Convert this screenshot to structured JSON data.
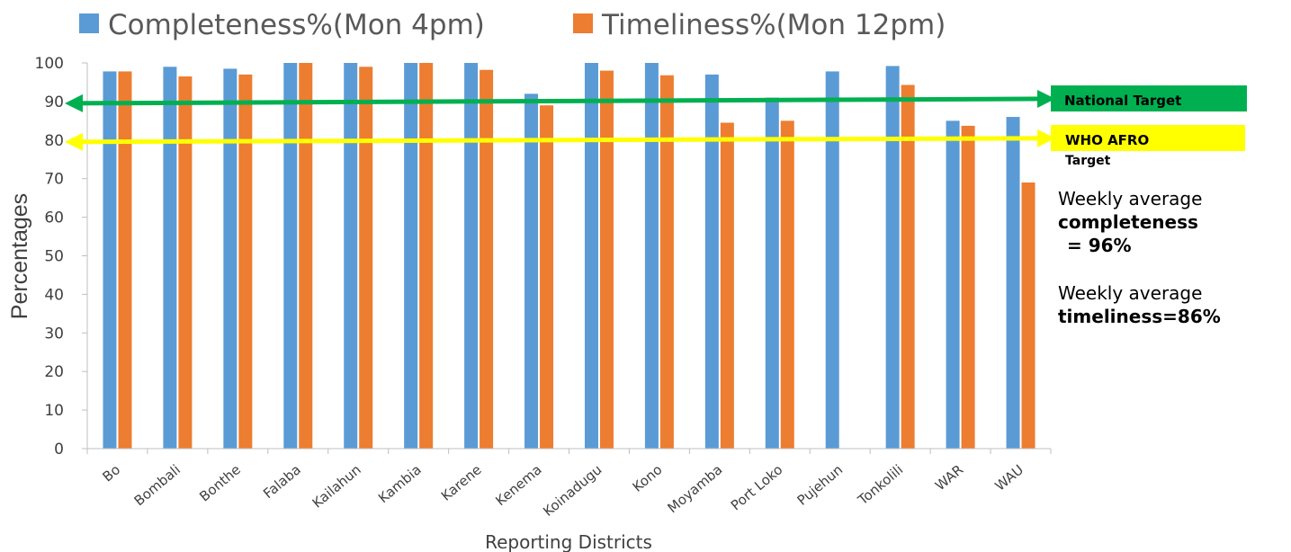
{
  "chart_data": {
    "type": "bar",
    "xlabel": "Reporting Districts",
    "ylabel": "Percentages",
    "ylim": [
      0,
      100
    ],
    "yticks": [
      0,
      10,
      20,
      30,
      40,
      50,
      60,
      70,
      80,
      90,
      100
    ],
    "grid": false,
    "legend_position": "top",
    "categories": [
      "Bo",
      "Bombali",
      "Bonthe",
      "Falaba",
      "Kailahun",
      "Kambia",
      "Karene",
      "Kenema",
      "Koinadugu",
      "Kono",
      "Moyamba",
      "Port Loko",
      "Pujehun",
      "Tonkolili",
      "WAR",
      "WAU"
    ],
    "series": [
      {
        "name": "Completeness%(Mon 4pm)",
        "color": "#5b9bd5",
        "values": [
          97.8,
          99,
          98.5,
          100,
          100,
          100,
          100,
          92,
          100,
          100,
          97,
          91,
          97.8,
          99.2,
          85,
          86
        ]
      },
      {
        "name": "Timeliness%(Mon 12pm)",
        "color": "#ed7d31",
        "values": [
          97.8,
          96.5,
          97,
          100,
          99,
          100,
          98.2,
          89,
          98,
          96.8,
          84.5,
          85,
          null,
          94.3,
          83.7,
          69
        ]
      }
    ],
    "reference_lines": [
      {
        "label": "National Target",
        "value": 90,
        "color": "#00b050"
      },
      {
        "label_line1": "WHO AFRO",
        "label_line2": "Target",
        "value": 80,
        "color": "#ffff00"
      }
    ]
  },
  "annotations": {
    "completeness": {
      "line1": "Weekly average",
      "line2": "completeness",
      "line3": "= 96%"
    },
    "timeliness": {
      "line1": "Weekly average",
      "line2": "timeliness=86%"
    }
  }
}
